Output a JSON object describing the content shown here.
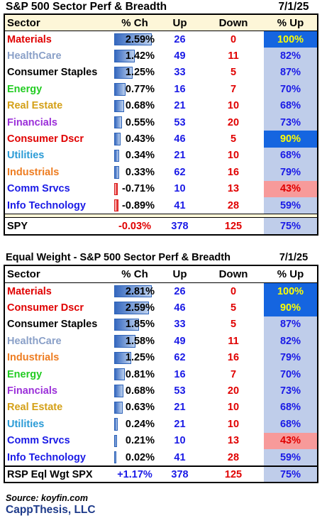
{
  "colors": {
    "materials": "#e00000",
    "healthcare": "#8aa0c8",
    "consumer_staples": "#000000",
    "energy": "#22cc22",
    "real_estate": "#d4a017",
    "financials": "#9b30d9",
    "consumer_dscr": "#e00000",
    "utilities": "#2a9bd6",
    "industrials": "#ee7d22",
    "comm_srvcs": "#1a1ae6",
    "info_tech": "#1a1ae6",
    "up_text": "#1a1ae6",
    "down_text": "#e00000",
    "top_fill": "#1565e0",
    "low_fill": "#f79a9a"
  },
  "table1": {
    "title": "S&P 500 Sector Perf & Breadth",
    "date": "7/1/25",
    "headers": {
      "sector": "Sector",
      "pct": "% Ch",
      "up": "Up",
      "down": "Down",
      "pct_up": "% Up"
    },
    "rows": [
      {
        "sector": "Materials",
        "color": "#e00000",
        "pct": "2.59%",
        "pct_value": 2.59,
        "up": "26",
        "down": "0",
        "pct_up": "100%",
        "hl": "top"
      },
      {
        "sector": "HealthCare",
        "color": "#8aa0c8",
        "pct": "1.42%",
        "pct_value": 1.42,
        "up": "49",
        "down": "11",
        "pct_up": "82%",
        "hl": ""
      },
      {
        "sector": "Consumer Staples",
        "color": "#000000",
        "pct": "1.25%",
        "pct_value": 1.25,
        "up": "33",
        "down": "5",
        "pct_up": "87%",
        "hl": ""
      },
      {
        "sector": "Energy",
        "color": "#22cc22",
        "pct": "0.77%",
        "pct_value": 0.77,
        "up": "16",
        "down": "7",
        "pct_up": "70%",
        "hl": ""
      },
      {
        "sector": "Real Estate",
        "color": "#d4a017",
        "pct": "0.68%",
        "pct_value": 0.68,
        "up": "21",
        "down": "10",
        "pct_up": "68%",
        "hl": ""
      },
      {
        "sector": "Financials",
        "color": "#9b30d9",
        "pct": "0.55%",
        "pct_value": 0.55,
        "up": "53",
        "down": "20",
        "pct_up": "73%",
        "hl": ""
      },
      {
        "sector": "Consumer Dscr",
        "color": "#e00000",
        "pct": "0.43%",
        "pct_value": 0.43,
        "up": "46",
        "down": "5",
        "pct_up": "90%",
        "hl": "top"
      },
      {
        "sector": "Utilities",
        "color": "#2a9bd6",
        "pct": "0.34%",
        "pct_value": 0.34,
        "up": "21",
        "down": "10",
        "pct_up": "68%",
        "hl": ""
      },
      {
        "sector": "Industrials",
        "color": "#ee7d22",
        "pct": "0.33%",
        "pct_value": 0.33,
        "up": "62",
        "down": "16",
        "pct_up": "79%",
        "hl": ""
      },
      {
        "sector": "Comm Srvcs",
        "color": "#1a1ae6",
        "pct": "-0.71%",
        "pct_value": -0.71,
        "up": "10",
        "down": "13",
        "pct_up": "43%",
        "hl": "low"
      },
      {
        "sector": "Info Technology",
        "color": "#1a1ae6",
        "pct": "-0.89%",
        "pct_value": -0.89,
        "up": "41",
        "down": "28",
        "pct_up": "59%",
        "hl": ""
      }
    ],
    "total": {
      "label": "SPY",
      "pct": "-0.03%",
      "pct_color": "#e00000",
      "up": "378",
      "down": "125",
      "pct_up": "75%"
    }
  },
  "table2": {
    "title": "Equal Weight - S&P 500 Sector Perf & Breadth",
    "date": "7/1/25",
    "headers": {
      "sector": "Sector",
      "pct": "% Ch",
      "up": "Up",
      "down": "Down",
      "pct_up": "% Up"
    },
    "rows": [
      {
        "sector": "Materials",
        "color": "#e00000",
        "pct": "2.81%",
        "pct_value": 2.81,
        "up": "26",
        "down": "0",
        "pct_up": "100%",
        "hl": "top"
      },
      {
        "sector": "Consumer Dscr",
        "color": "#e00000",
        "pct": "2.59%",
        "pct_value": 2.59,
        "up": "46",
        "down": "5",
        "pct_up": "90%",
        "hl": "top"
      },
      {
        "sector": "Consumer Staples",
        "color": "#000000",
        "pct": "1.85%",
        "pct_value": 1.85,
        "up": "33",
        "down": "5",
        "pct_up": "87%",
        "hl": ""
      },
      {
        "sector": "HealthCare",
        "color": "#8aa0c8",
        "pct": "1.58%",
        "pct_value": 1.58,
        "up": "49",
        "down": "11",
        "pct_up": "82%",
        "hl": ""
      },
      {
        "sector": "Industrials",
        "color": "#ee7d22",
        "pct": "1.25%",
        "pct_value": 1.25,
        "up": "62",
        "down": "16",
        "pct_up": "79%",
        "hl": ""
      },
      {
        "sector": "Energy",
        "color": "#22cc22",
        "pct": "0.81%",
        "pct_value": 0.81,
        "up": "16",
        "down": "7",
        "pct_up": "70%",
        "hl": ""
      },
      {
        "sector": "Financials",
        "color": "#9b30d9",
        "pct": "0.68%",
        "pct_value": 0.68,
        "up": "53",
        "down": "20",
        "pct_up": "73%",
        "hl": ""
      },
      {
        "sector": "Real Estate",
        "color": "#d4a017",
        "pct": "0.63%",
        "pct_value": 0.63,
        "up": "21",
        "down": "10",
        "pct_up": "68%",
        "hl": ""
      },
      {
        "sector": "Utilities",
        "color": "#2a9bd6",
        "pct": "0.24%",
        "pct_value": 0.24,
        "up": "21",
        "down": "10",
        "pct_up": "68%",
        "hl": ""
      },
      {
        "sector": "Comm Srvcs",
        "color": "#1a1ae6",
        "pct": "0.21%",
        "pct_value": 0.21,
        "up": "10",
        "down": "13",
        "pct_up": "43%",
        "hl": "low"
      },
      {
        "sector": "Info Technology",
        "color": "#1a1ae6",
        "pct": "0.02%",
        "pct_value": 0.02,
        "up": "41",
        "down": "28",
        "pct_up": "59%",
        "hl": ""
      }
    ],
    "total": {
      "label": "RSP Eql Wgt SPX",
      "pct": "+1.17%",
      "pct_color": "#1a1ae6",
      "up": "378",
      "down": "125",
      "pct_up": "75%"
    }
  },
  "footer": {
    "source": "Source: koyfin.com",
    "brand": "CappThesis, LLC"
  }
}
